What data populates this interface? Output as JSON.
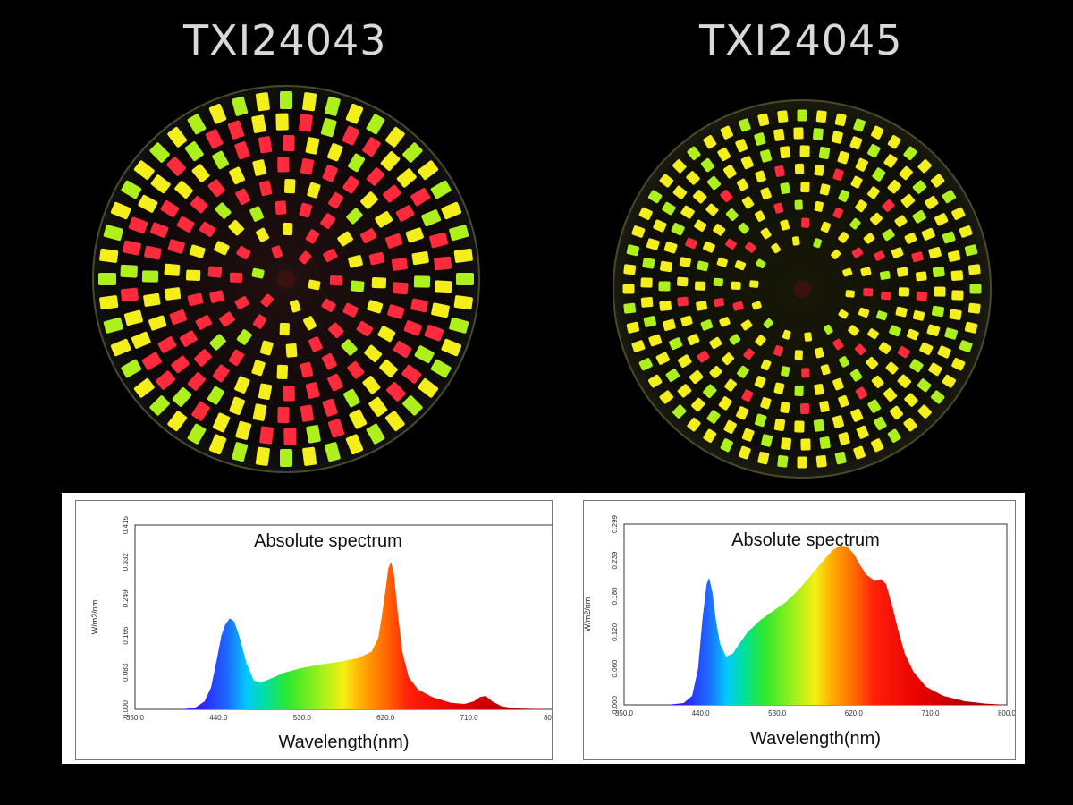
{
  "products": {
    "left": "TXI24043",
    "right": "TXI24045"
  },
  "colors": {
    "background": "#000000",
    "led_red": "#ff2a3c",
    "led_yellow": "#f4ef1a",
    "led_green": "#aef01c"
  },
  "chart_data": [
    {
      "type": "area",
      "product": "TXI24043",
      "title": "Absolute spectrum",
      "xlabel": "Wavelength(nm)",
      "ylabel": "W/m2/nm",
      "xlim": [
        350,
        800
      ],
      "ylim": [
        0,
        0.415
      ],
      "xticks": [
        "350.0",
        "440.0",
        "530.0",
        "620.0",
        "710.0",
        "800.0"
      ],
      "yticks": [
        "0.000",
        "0.083",
        "0.166",
        "0.249",
        "0.332",
        "0.415"
      ],
      "x": [
        350,
        400,
        415,
        425,
        432,
        438,
        443,
        447,
        452,
        457,
        463,
        470,
        478,
        485,
        495,
        510,
        530,
        550,
        570,
        590,
        605,
        612,
        616,
        620,
        623,
        626,
        629,
        633,
        638,
        645,
        655,
        670,
        690,
        705,
        715,
        722,
        728,
        735,
        745,
        760,
        800
      ],
      "y": [
        0,
        0,
        0.004,
        0.018,
        0.05,
        0.11,
        0.165,
        0.19,
        0.205,
        0.198,
        0.16,
        0.105,
        0.065,
        0.06,
        0.068,
        0.082,
        0.093,
        0.101,
        0.107,
        0.115,
        0.13,
        0.16,
        0.21,
        0.27,
        0.318,
        0.332,
        0.305,
        0.22,
        0.13,
        0.072,
        0.045,
        0.028,
        0.015,
        0.012,
        0.018,
        0.028,
        0.03,
        0.018,
        0.007,
        0.002,
        0
      ]
    },
    {
      "type": "area",
      "product": "TXI24045",
      "title": "Absolute spectrum",
      "xlabel": "Wavelength(nm)",
      "ylabel": "W/m2/nm",
      "xlim": [
        350,
        800
      ],
      "ylim": [
        0,
        0.299
      ],
      "xticks": [
        "350.0",
        "440.0",
        "530.0",
        "620.0",
        "710.0",
        "800.0"
      ],
      "yticks": [
        "0.000",
        "0.060",
        "0.120",
        "0.180",
        "0.239",
        "0.299"
      ],
      "x": [
        350,
        400,
        420,
        430,
        437,
        442,
        447,
        450,
        454,
        458,
        463,
        470,
        478,
        485,
        495,
        510,
        525,
        540,
        555,
        570,
        585,
        595,
        605,
        612,
        620,
        628,
        635,
        645,
        652,
        658,
        665,
        672,
        680,
        690,
        705,
        725,
        750,
        775,
        800
      ],
      "y": [
        0,
        0,
        0.003,
        0.015,
        0.06,
        0.14,
        0.2,
        0.21,
        0.185,
        0.14,
        0.1,
        0.08,
        0.085,
        0.1,
        0.12,
        0.14,
        0.155,
        0.17,
        0.19,
        0.215,
        0.24,
        0.256,
        0.264,
        0.262,
        0.25,
        0.23,
        0.215,
        0.205,
        0.208,
        0.2,
        0.165,
        0.125,
        0.085,
        0.055,
        0.03,
        0.015,
        0.006,
        0.002,
        0
      ]
    }
  ]
}
